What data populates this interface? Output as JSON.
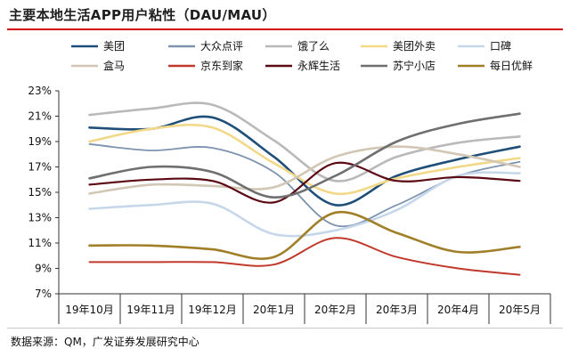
{
  "title": "主要本地生活APP用户粘性（DAU/MAU）",
  "source": "数据来源：QM，广发证券发展研究中心",
  "chart_data": {
    "type": "line",
    "title": "主要本地生活APP用户粘性（DAU/MAU）",
    "xlabel": "",
    "ylabel": "",
    "ylim": [
      7,
      23
    ],
    "yticks": [
      "7%",
      "9%",
      "11%",
      "13%",
      "15%",
      "17%",
      "19%",
      "21%",
      "23%"
    ],
    "ytick_values": [
      7,
      9,
      11,
      13,
      15,
      17,
      19,
      21,
      23
    ],
    "categories": [
      "19年10月",
      "19年11月",
      "19年12月",
      "20年1月",
      "20年2月",
      "20年3月",
      "20年4月",
      "20年5月"
    ],
    "legend_position": "top",
    "series": [
      {
        "name": "美团",
        "color": "#1f4e79",
        "width": 2.6,
        "values": [
          20.1,
          20.0,
          20.9,
          17.8,
          14.0,
          16.3,
          17.6,
          18.6
        ]
      },
      {
        "name": "大众点评",
        "color": "#7d93ae",
        "width": 1.8,
        "values": [
          18.8,
          18.3,
          18.5,
          16.6,
          12.4,
          14.0,
          16.3,
          17.4
        ]
      },
      {
        "name": "饿了么",
        "color": "#b9b9b9",
        "width": 2.6,
        "values": [
          21.1,
          21.6,
          21.9,
          19.1,
          15.9,
          17.8,
          18.9,
          19.4
        ]
      },
      {
        "name": "美团外卖",
        "color": "#f2d98a",
        "width": 2.6,
        "values": [
          19.0,
          20.0,
          20.1,
          17.3,
          14.9,
          16.1,
          17.0,
          17.7
        ]
      },
      {
        "name": "口碑",
        "color": "#c7d7ea",
        "width": 2.6,
        "values": [
          13.7,
          14.0,
          14.1,
          11.7,
          12.0,
          13.6,
          16.3,
          16.5
        ]
      },
      {
        "name": "盒马",
        "color": "#d2c7b5",
        "width": 2.6,
        "values": [
          14.9,
          15.6,
          15.5,
          15.4,
          17.8,
          18.6,
          18.0,
          17.0
        ]
      },
      {
        "name": "京东到家",
        "color": "#c0392b",
        "width": 2.0,
        "values": [
          9.5,
          9.5,
          9.5,
          9.3,
          11.4,
          9.9,
          9.0,
          8.5
        ]
      },
      {
        "name": "永辉生活",
        "color": "#5b0a14",
        "width": 2.2,
        "values": [
          15.6,
          16.0,
          15.9,
          14.2,
          17.3,
          15.9,
          16.2,
          15.9
        ]
      },
      {
        "name": "苏宁小店",
        "color": "#6f6f6f",
        "width": 2.6,
        "values": [
          16.1,
          17.0,
          16.6,
          14.6,
          16.3,
          19.0,
          20.4,
          21.2
        ]
      },
      {
        "name": "每日优鲜",
        "color": "#a07f28",
        "width": 2.6,
        "values": [
          10.8,
          10.8,
          10.5,
          9.9,
          13.4,
          11.8,
          10.3,
          10.7
        ]
      }
    ]
  }
}
